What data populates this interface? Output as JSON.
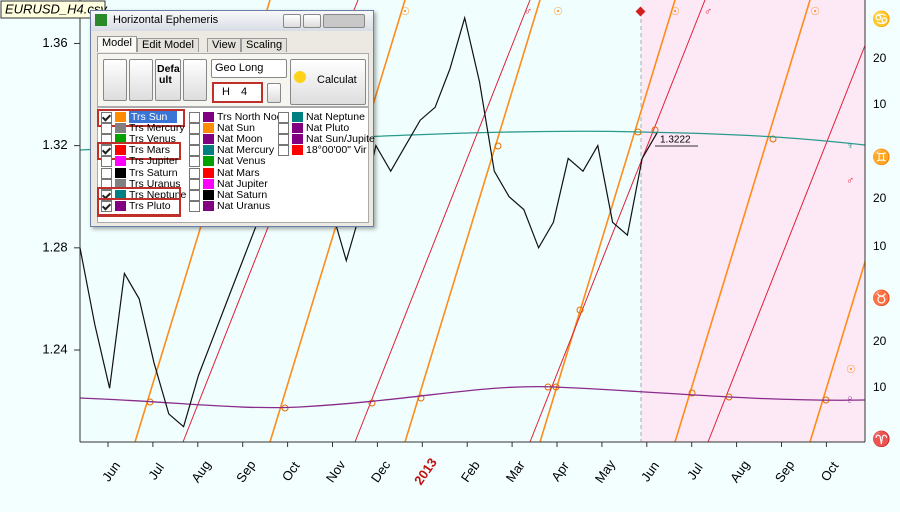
{
  "file_label": "EURUSD_H4.csv",
  "chart": {
    "ylim": [
      1.204,
      1.377
    ],
    "yticks": [
      1.36,
      1.32,
      1.28,
      1.24
    ],
    "months": [
      "Jun",
      "Jul",
      "Aug",
      "Sep",
      "Oct",
      "Nov",
      "Dec",
      "2013",
      "Feb",
      "Mar",
      "Apr",
      "May",
      "Jun",
      "Jul",
      "Aug",
      "Sep",
      "Oct"
    ],
    "price": [
      1.28,
      1.25,
      1.225,
      1.27,
      1.26,
      1.235,
      1.215,
      1.21,
      1.23,
      1.245,
      1.26,
      1.275,
      1.29,
      1.3,
      1.29,
      1.295,
      1.31,
      1.295,
      1.275,
      1.295,
      1.32,
      1.31,
      1.32,
      1.33,
      1.335,
      1.35,
      1.37,
      1.345,
      1.31,
      1.3,
      1.295,
      1.28,
      1.29,
      1.315,
      1.31,
      1.32,
      1.29,
      1.285,
      1.315,
      1.325
    ],
    "price_label": 1.3222,
    "right_axis_labels": [
      20,
      10,
      20,
      10,
      20,
      10
    ],
    "zodiac": [
      "♋",
      "♊",
      "♉",
      "♈"
    ],
    "top_glyphs": [
      "☉",
      "♂",
      "☉",
      "☉",
      "♂",
      "☉"
    ],
    "side_glyphs": [
      "♆",
      "♂",
      "☉",
      "♇"
    ]
  },
  "dialog": {
    "title": "Horizontal Ephemeris",
    "tabs": [
      "Model",
      "Edit Model",
      "View",
      "Scaling"
    ],
    "default_button": [
      "Defa",
      "ult"
    ],
    "mode": "Geo Long",
    "timeframe_prefix": "H",
    "timeframe": "4",
    "calculate": "Calculat",
    "columns": [
      [
        {
          "label": "Trs Sun",
          "color": "#ff8c00",
          "checked": true
        },
        {
          "label": "Trs Mercury",
          "color": "#808080",
          "checked": false
        },
        {
          "label": "Trs Venus",
          "color": "#00a000",
          "checked": false
        },
        {
          "label": "Trs Mars",
          "color": "#ff0000",
          "checked": true
        },
        {
          "label": "Trs Jupiter",
          "color": "#ff00ff",
          "checked": false
        },
        {
          "label": "Trs Saturn",
          "color": "#000000",
          "checked": false
        },
        {
          "label": "Trs Uranus",
          "color": "#808080",
          "checked": false
        },
        {
          "label": "Trs Neptune",
          "color": "#008080",
          "checked": true
        },
        {
          "label": "Trs Pluto",
          "color": "#800080",
          "checked": true
        }
      ],
      [
        {
          "label": "Trs North Node",
          "color": "#800080",
          "checked": false
        },
        {
          "label": "Nat Sun",
          "color": "#ff8c00",
          "checked": false
        },
        {
          "label": "Nat Moon",
          "color": "#800080",
          "checked": false
        },
        {
          "label": "Nat Mercury",
          "color": "#008080",
          "checked": false
        },
        {
          "label": "Nat Venus",
          "color": "#00a000",
          "checked": false
        },
        {
          "label": "Nat Mars",
          "color": "#ff0000",
          "checked": false
        },
        {
          "label": "Nat Jupiter",
          "color": "#ff00ff",
          "checked": false
        },
        {
          "label": "Nat Saturn",
          "color": "#000000",
          "checked": false
        },
        {
          "label": "Nat Uranus",
          "color": "#800080",
          "checked": false
        }
      ],
      [
        {
          "label": "Nat Neptune",
          "color": "#008080",
          "checked": false
        },
        {
          "label": "Nat Pluto",
          "color": "#800080",
          "checked": false
        },
        {
          "label": "Nat Sun/Jupite",
          "color": "#800080",
          "checked": false
        },
        {
          "label": "18°00'00\" Vir",
          "color": "#ff0000",
          "checked": false
        }
      ]
    ]
  }
}
